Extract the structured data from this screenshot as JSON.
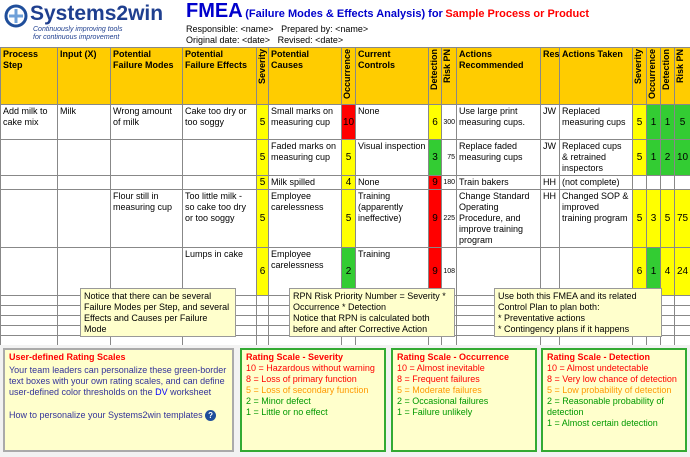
{
  "header": {
    "logo": "Systems2win",
    "tagline_1": "Continuously improving tools",
    "tagline_2": "for continuous improvement",
    "title": "FMEA",
    "subtitle": "(Failure Modes & Effects Analysis) for",
    "product": "Sample Process or Product",
    "responsible": "Responsible: <name>",
    "prepared": "Prepared by: <name>",
    "original_date": "Original date: <date>",
    "revised": "Revised: <date>"
  },
  "table": {
    "columns": [
      "Process Step",
      "Input (X)",
      "Potential Failure Modes",
      "Potential Failure Effects",
      "Severity",
      "Potential Causes",
      "Occurrence",
      "Current Controls",
      "Detection",
      "Risk PN",
      "Actions Recommended",
      "Resp.",
      "Actions Taken",
      "Severity",
      "Occurrence",
      "Detection",
      "Risk PN"
    ],
    "rows": [
      [
        "Add milk to cake mix",
        "Milk",
        "Wrong amount of milk",
        "Cake too dry or too soggy",
        {
          "value": 5,
          "color": "#ffff00"
        },
        "Small marks on measuring cup",
        {
          "value": 10,
          "color": "#ff0000"
        },
        "None",
        {
          "value": 6,
          "color": "#ffff00"
        },
        300,
        "Use large print measuring cups.",
        "JW",
        "Replaced measuring cups",
        {
          "value": 5,
          "color": "#ffff00"
        },
        {
          "value": 1,
          "color": "#33cc33"
        },
        {
          "value": 1,
          "color": "#33cc33"
        },
        {
          "value": 5,
          "color": "#33cc33"
        }
      ],
      [
        null,
        null,
        null,
        null,
        {
          "value": 5,
          "color": "#ffff00"
        },
        "Faded marks on measuring cup",
        {
          "value": 5,
          "color": "#ffff00"
        },
        "Visual inspection",
        {
          "value": 3,
          "color": "#33cc33"
        },
        75,
        "Replace faded measuring cups",
        "JW",
        "Replaced cups & retrained inspectors",
        {
          "value": 5,
          "color": "#ffff00"
        },
        {
          "value": 1,
          "color": "#33cc33"
        },
        {
          "value": 2,
          "color": "#33cc33"
        },
        {
          "value": 10,
          "color": "#33cc33"
        }
      ],
      [
        null,
        null,
        null,
        null,
        {
          "value": 5,
          "color": "#ffff00"
        },
        "Milk spilled",
        {
          "value": 4,
          "color": "#ffff00"
        },
        "None",
        {
          "value": 9,
          "color": "#ff0000"
        },
        180,
        "Train bakers",
        "HH",
        "(not complete)",
        null,
        null,
        null,
        null
      ],
      [
        null,
        null,
        "Flour still in measuring cup",
        "Too little milk - so cake too dry or too soggy",
        {
          "value": 5,
          "color": "#ffff00"
        },
        "Employee carelessness",
        {
          "value": 5,
          "color": "#ffff00"
        },
        "Training (apparently ineffective)",
        {
          "value": 9,
          "color": "#ff0000"
        },
        225,
        "Change Standard Operating Procedure, and improve training program",
        "HH",
        "Changed SOP & improved training program",
        {
          "value": 5,
          "color": "#ffff00"
        },
        {
          "value": 3,
          "color": "#ffff00"
        },
        {
          "value": 5,
          "color": "#ffff00"
        },
        {
          "value": 75,
          "color": "#ffff00"
        }
      ],
      [
        null,
        null,
        null,
        "Lumps in cake",
        {
          "value": 6,
          "color": "#ffff00"
        },
        "Employee carelessness",
        {
          "value": 2,
          "color": "#33cc33"
        },
        "Training",
        {
          "value": 9,
          "color": "#ff0000"
        },
        108,
        null,
        null,
        null,
        {
          "value": 6,
          "color": "#ffff00"
        },
        {
          "value": 1,
          "color": "#33cc33"
        },
        {
          "value": 4,
          "color": "#ffff00"
        },
        {
          "value": 24,
          "color": "#ffff00"
        }
      ]
    ]
  },
  "notes": [
    {
      "lines": [
        "Notice that there can be several Failure Modes per Step, and several Effects and Causes per Failure Mode"
      ]
    },
    {
      "lines": [
        "RPN Risk Priority Number = Severity * Occurrence * Detection",
        "Notice that RPN is calculated both before and after Corrective Action"
      ]
    },
    {
      "lines": [
        "Use both this FMEA and its related Control Plan to plan both:",
        "* Preventative actions",
        "* Contingency plans if it happens"
      ]
    }
  ],
  "scales": {
    "intro": {
      "title": "User-defined Rating Scales",
      "text_1": "Your team leaders can personalize these green-border text boxes with your own rating scales, and can define user-defined color thresholds on the",
      "link": "DV",
      "text_2": "worksheet",
      "help": "How to personalize your Systems2win templates",
      "help_icon": "?"
    },
    "boxes": [
      {
        "title": "Rating Scale - Severity",
        "lines": [
          {
            "text": "10 = Hazardous without warning",
            "color": "#ff0000"
          },
          {
            "text": "8 = Loss of primary function",
            "color": "#ff0000"
          },
          {
            "text": "5 = Loss of secondary function",
            "color": "#ff9900"
          },
          {
            "text": "2 = Minor defect",
            "color": "#009900"
          },
          {
            "text": "1 = Little or no effect",
            "color": "#009900"
          }
        ]
      },
      {
        "title": "Rating Scale - Occurrence",
        "lines": [
          {
            "text": "10 = Almost inevitable",
            "color": "#ff0000"
          },
          {
            "text": "8 = Frequent failures",
            "color": "#ff0000"
          },
          {
            "text": "5 = Moderate failures",
            "color": "#ff9900"
          },
          {
            "text": "2 = Occasional failures",
            "color": "#009900"
          },
          {
            "text": "1 = Failure unlikely",
            "color": "#009900"
          }
        ]
      },
      {
        "title": "Rating Scale - Detection",
        "lines": [
          {
            "text": "10 = Almost undetectable",
            "color": "#ff0000"
          },
          {
            "text": "8 = Very low chance of detection",
            "color": "#ff0000"
          },
          {
            "text": "5 = Low probability of detection",
            "color": "#ff9900"
          },
          {
            "text": "2 = Reasonable probability of detection",
            "color": "#009900"
          },
          {
            "text": "1 = Almost certain detection",
            "color": "#009900"
          }
        ]
      }
    ]
  }
}
